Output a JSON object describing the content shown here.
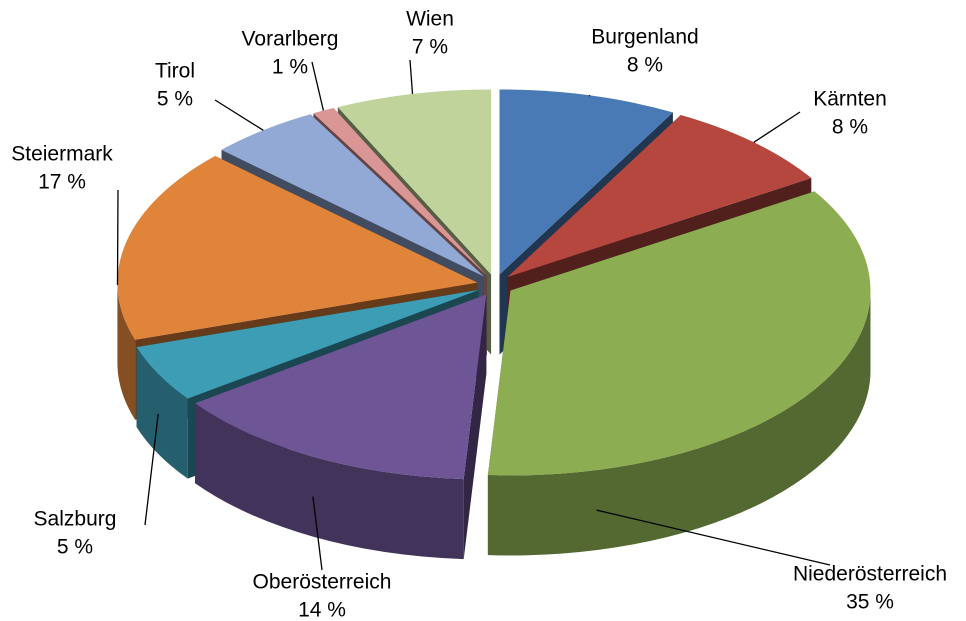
{
  "chart_data": {
    "type": "pie3d",
    "categories": [
      "Burgenland",
      "Kärnten",
      "Niederösterreich",
      "Oberösterreich",
      "Salzburg",
      "Steiermark",
      "Tirol",
      "Vorarlberg",
      "Wien"
    ],
    "values": [
      8,
      8,
      35,
      14,
      5,
      17,
      5,
      1,
      7
    ],
    "value_labels": [
      "8 %",
      "8 %",
      "35 %",
      "14 %",
      "5 %",
      "17 %",
      "5 %",
      "1 %",
      "7 %"
    ],
    "colors": [
      "#4a7ab5",
      "#b5473f",
      "#8cad52",
      "#6e5596",
      "#3d9db5",
      "#e0843a",
      "#92a9d6",
      "#d99694",
      "#c0d39a"
    ]
  }
}
